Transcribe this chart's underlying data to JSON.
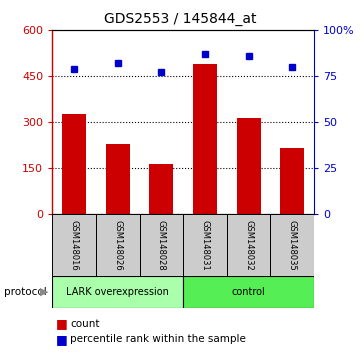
{
  "title": "GDS2553 / 145844_at",
  "samples": [
    "GSM148016",
    "GSM148026",
    "GSM148028",
    "GSM148031",
    "GSM148032",
    "GSM148035"
  ],
  "counts": [
    325,
    230,
    165,
    490,
    315,
    215
  ],
  "percentile_ranks": [
    79,
    82,
    77,
    87,
    86,
    80
  ],
  "left_ylim": [
    0,
    600
  ],
  "right_ylim": [
    0,
    100
  ],
  "left_yticks": [
    0,
    150,
    300,
    450,
    600
  ],
  "right_yticks": [
    0,
    25,
    50,
    75,
    100
  ],
  "left_ytick_labels": [
    "0",
    "150",
    "300",
    "450",
    "600"
  ],
  "right_ytick_labels": [
    "0",
    "25",
    "50",
    "75",
    "100%"
  ],
  "bar_color": "#cc0000",
  "marker_color": "#0000cc",
  "group1_label": "LARK overexpression",
  "group1_color": "#aaffaa",
  "group2_label": "control",
  "group2_color": "#55ee55",
  "protocol_label": "protocol",
  "legend_count_label": "count",
  "legend_prank_label": "percentile rank within the sample",
  "xtick_bg": "#cccccc",
  "plot_bgcolor": "#ffffff",
  "dotted_gridlines": [
    150,
    300,
    450
  ]
}
